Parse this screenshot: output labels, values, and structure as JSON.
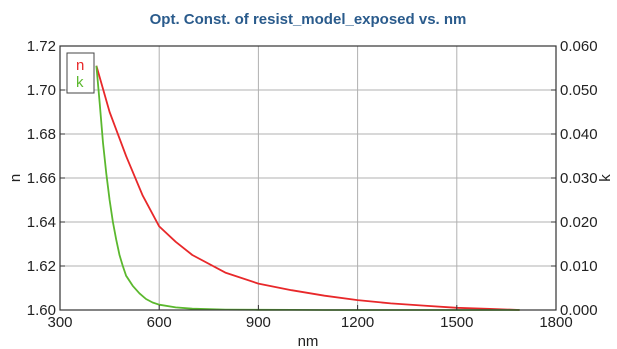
{
  "chart_data": {
    "type": "line",
    "title": "Opt. Const. of resist_model_exposed vs. nm",
    "xlabel": "nm",
    "ylabel_left": "n",
    "ylabel_right": "k",
    "xlim": [
      300,
      1800
    ],
    "ylim_left": [
      1.6,
      1.72
    ],
    "ylim_right": [
      0.0,
      0.06
    ],
    "x_ticks": [
      "300",
      "600",
      "900",
      "1200",
      "1500",
      "1800"
    ],
    "y_left_ticks": [
      "1.60",
      "1.62",
      "1.64",
      "1.66",
      "1.68",
      "1.70",
      "1.72"
    ],
    "y_right_ticks": [
      "0.000",
      "0.010",
      "0.020",
      "0.030",
      "0.040",
      "0.050",
      "0.060"
    ],
    "grid": true,
    "legend_position": "top-left",
    "series": [
      {
        "name": "n",
        "axis": "left",
        "color": "#e8282a",
        "x": [
          410,
          450,
          500,
          550,
          600,
          650,
          700,
          800,
          900,
          1000,
          1100,
          1200,
          1300,
          1400,
          1500,
          1600,
          1690
        ],
        "y": [
          1.711,
          1.69,
          1.67,
          1.652,
          1.638,
          1.631,
          1.625,
          1.617,
          1.612,
          1.609,
          1.6065,
          1.6045,
          1.603,
          1.602,
          1.601,
          1.6005,
          1.6
        ]
      },
      {
        "name": "k",
        "axis": "right",
        "color": "#5bb82e",
        "x": [
          410,
          420,
          430,
          440,
          450,
          460,
          470,
          480,
          490,
          500,
          520,
          540,
          560,
          580,
          600,
          650,
          700,
          800,
          900,
          1000,
          1100,
          1200,
          1400,
          1600,
          1690
        ],
        "y": [
          0.0555,
          0.047,
          0.038,
          0.031,
          0.025,
          0.02,
          0.016,
          0.0125,
          0.01,
          0.0078,
          0.0055,
          0.0038,
          0.0025,
          0.0017,
          0.0012,
          0.0006,
          0.0003,
          0.0001,
          5e-05,
          2e-05,
          0.0,
          0.0,
          0.0,
          0.0,
          0.0
        ]
      }
    ]
  }
}
